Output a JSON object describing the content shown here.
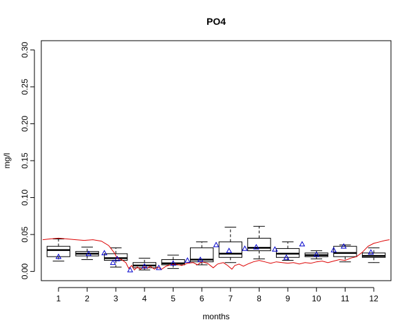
{
  "chart_data": {
    "type": "boxplot",
    "title": "PO4",
    "xlabel": "months",
    "ylabel": "mg/l",
    "categories": [
      "1",
      "2",
      "3",
      "4",
      "5",
      "6",
      "7",
      "8",
      "9",
      "10",
      "11",
      "12"
    ],
    "ylim": [
      0.0,
      0.31
    ],
    "yticks": [
      "0.00",
      "0.05",
      "0.10",
      "0.15",
      "0.20",
      "0.25",
      "0.30"
    ],
    "yticks_values": [
      0.0,
      0.05,
      0.1,
      0.15,
      0.2,
      0.25,
      0.3
    ],
    "grid": false,
    "boxes": [
      {
        "month": 1,
        "whisker_low": 0.014,
        "q1": 0.02,
        "median": 0.029,
        "q3": 0.034,
        "whisker_high": 0.044
      },
      {
        "month": 2,
        "whisker_low": 0.016,
        "q1": 0.021,
        "median": 0.024,
        "q3": 0.027,
        "whisker_high": 0.033
      },
      {
        "month": 3,
        "whisker_low": 0.006,
        "q1": 0.015,
        "median": 0.018,
        "q3": 0.024,
        "whisker_high": 0.032
      },
      {
        "month": 4,
        "whisker_low": 0.002,
        "q1": 0.005,
        "median": 0.008,
        "q3": 0.012,
        "whisker_high": 0.018
      },
      {
        "month": 5,
        "whisker_low": 0.004,
        "q1": 0.009,
        "median": 0.011,
        "q3": 0.016,
        "whisker_high": 0.022
      },
      {
        "month": 6,
        "whisker_low": 0.009,
        "q1": 0.013,
        "median": 0.016,
        "q3": 0.032,
        "whisker_high": 0.04
      },
      {
        "month": 7,
        "whisker_low": 0.012,
        "q1": 0.019,
        "median": 0.024,
        "q3": 0.04,
        "whisker_high": 0.06
      },
      {
        "month": 8,
        "whisker_low": 0.017,
        "q1": 0.028,
        "median": 0.032,
        "q3": 0.045,
        "whisker_high": 0.061
      },
      {
        "month": 9,
        "whisker_low": 0.015,
        "q1": 0.019,
        "median": 0.024,
        "q3": 0.031,
        "whisker_high": 0.04
      },
      {
        "month": 10,
        "whisker_low": 0.017,
        "q1": 0.02,
        "median": 0.022,
        "q3": 0.025,
        "whisker_high": 0.028
      },
      {
        "month": 11,
        "whisker_low": 0.013,
        "q1": 0.02,
        "median": 0.025,
        "q3": 0.034,
        "whisker_high": 0.036
      },
      {
        "month": 12,
        "whisker_low": 0.012,
        "q1": 0.019,
        "median": 0.021,
        "q3": 0.025,
        "whisker_high": 0.032
      }
    ],
    "triangle_points": [
      {
        "x": 1.0,
        "y": 0.02
      },
      {
        "x": 2.05,
        "y": 0.024
      },
      {
        "x": 2.6,
        "y": 0.025
      },
      {
        "x": 2.9,
        "y": 0.012
      },
      {
        "x": 3.05,
        "y": 0.017
      },
      {
        "x": 3.5,
        "y": 0.002
      },
      {
        "x": 4.0,
        "y": 0.007
      },
      {
        "x": 4.5,
        "y": 0.005
      },
      {
        "x": 5.0,
        "y": 0.011
      },
      {
        "x": 5.5,
        "y": 0.015
      },
      {
        "x": 5.95,
        "y": 0.016
      },
      {
        "x": 6.5,
        "y": 0.036
      },
      {
        "x": 6.95,
        "y": 0.028
      },
      {
        "x": 7.5,
        "y": 0.031
      },
      {
        "x": 7.9,
        "y": 0.033
      },
      {
        "x": 8.55,
        "y": 0.03
      },
      {
        "x": 8.95,
        "y": 0.019
      },
      {
        "x": 9.5,
        "y": 0.037
      },
      {
        "x": 10.0,
        "y": 0.023
      },
      {
        "x": 10.6,
        "y": 0.029
      },
      {
        "x": 10.95,
        "y": 0.034
      },
      {
        "x": 11.9,
        "y": 0.026
      }
    ],
    "red_line": [
      [
        0.45,
        0.043
      ],
      [
        0.7,
        0.044
      ],
      [
        1.0,
        0.045
      ],
      [
        1.3,
        0.044
      ],
      [
        1.6,
        0.043
      ],
      [
        1.9,
        0.042
      ],
      [
        2.2,
        0.043
      ],
      [
        2.5,
        0.041
      ],
      [
        2.75,
        0.035
      ],
      [
        2.95,
        0.025
      ],
      [
        3.05,
        0.018
      ],
      [
        3.2,
        0.016
      ],
      [
        3.35,
        0.012
      ],
      [
        3.45,
        0.004
      ],
      [
        3.55,
        0.008
      ],
      [
        3.65,
        0.002
      ],
      [
        3.75,
        0.006
      ],
      [
        3.85,
        0.003
      ],
      [
        4.0,
        0.006
      ],
      [
        4.1,
        0.004
      ],
      [
        4.2,
        0.007
      ],
      [
        4.35,
        0.003
      ],
      [
        4.45,
        0.006
      ],
      [
        4.6,
        0.003
      ],
      [
        4.75,
        0.007
      ],
      [
        4.9,
        0.009
      ],
      [
        5.1,
        0.01
      ],
      [
        5.3,
        0.008
      ],
      [
        5.5,
        0.011
      ],
      [
        5.7,
        0.012
      ],
      [
        5.85,
        0.009
      ],
      [
        6.0,
        0.013
      ],
      [
        6.2,
        0.011
      ],
      [
        6.4,
        0.005
      ],
      [
        6.55,
        0.01
      ],
      [
        6.75,
        0.012
      ],
      [
        6.9,
        0.008
      ],
      [
        7.05,
        0.003
      ],
      [
        7.15,
        0.008
      ],
      [
        7.3,
        0.01
      ],
      [
        7.45,
        0.007
      ],
      [
        7.6,
        0.01
      ],
      [
        7.8,
        0.013
      ],
      [
        8.0,
        0.015
      ],
      [
        8.2,
        0.013
      ],
      [
        8.4,
        0.011
      ],
      [
        8.6,
        0.013
      ],
      [
        8.8,
        0.012
      ],
      [
        9.0,
        0.011
      ],
      [
        9.2,
        0.012
      ],
      [
        9.4,
        0.01
      ],
      [
        9.6,
        0.012
      ],
      [
        9.8,
        0.011
      ],
      [
        10.0,
        0.013
      ],
      [
        10.2,
        0.014
      ],
      [
        10.4,
        0.012
      ],
      [
        10.6,
        0.014
      ],
      [
        10.8,
        0.016
      ],
      [
        11.0,
        0.015
      ],
      [
        11.2,
        0.018
      ],
      [
        11.4,
        0.02
      ],
      [
        11.6,
        0.026
      ],
      [
        11.8,
        0.034
      ],
      [
        12.0,
        0.038
      ],
      [
        12.2,
        0.04
      ],
      [
        12.4,
        0.042
      ],
      [
        12.55,
        0.043
      ]
    ],
    "colors": {
      "box": "#000000",
      "triangles": "#0000cc",
      "red_line": "#dd0000"
    }
  }
}
